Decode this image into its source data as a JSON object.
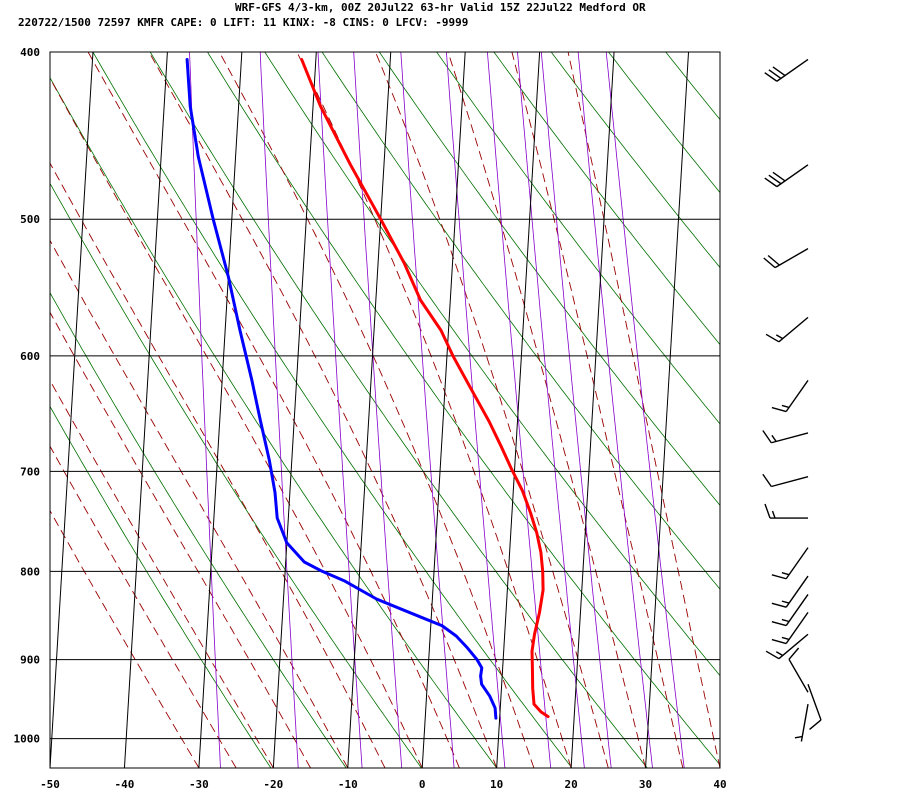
{
  "header": {
    "line1": "WRF-GFS 4/3-km, 00Z 20Jul22 63-hr Valid 15Z 22Jul22 Medford OR",
    "line2": "220722/1500 72597  KMFR    CAPE:     0 LIFT:    11 KINX:    -8 CINS:     0 LFCV: -9999"
  },
  "chart_data": {
    "type": "line",
    "title": "",
    "xlabel": "",
    "ylabel": "",
    "xlim": [
      -50,
      40
    ],
    "ylim_pressure": [
      1040,
      400
    ],
    "x_ticks": [
      -50,
      -40,
      -30,
      -20,
      -10,
      0,
      10,
      20,
      30,
      40
    ],
    "p_ticks": [
      400,
      500,
      600,
      700,
      800,
      900,
      1000
    ],
    "grid": true,
    "series": [
      {
        "name": "",
        "color": "#ff0000",
        "points": [
          [
            -21.9,
            404
          ],
          [
            -19,
            430
          ],
          [
            -14.5,
            465
          ],
          [
            -10,
            500
          ],
          [
            -6.5,
            530
          ],
          [
            -4,
            557
          ],
          [
            -1,
            580
          ],
          [
            0.8,
            600
          ],
          [
            3.5,
            627
          ],
          [
            6.2,
            655
          ],
          [
            8,
            677
          ],
          [
            9.6,
            698
          ],
          [
            11.2,
            718
          ],
          [
            12.5,
            740
          ],
          [
            13.5,
            760
          ],
          [
            14.2,
            780
          ],
          [
            14.6,
            800
          ],
          [
            14.8,
            820
          ],
          [
            14.5,
            845
          ],
          [
            14,
            870
          ],
          [
            13.8,
            890
          ],
          [
            14,
            910
          ],
          [
            14.2,
            935
          ],
          [
            14.5,
            955
          ],
          [
            15.5,
            965
          ],
          [
            16.5,
            971
          ]
        ]
      },
      {
        "name": "",
        "color": "#0000ff",
        "points": [
          [
            -37.3,
            404
          ],
          [
            -36.5,
            430
          ],
          [
            -35,
            460
          ],
          [
            -32.5,
            500
          ],
          [
            -30,
            540
          ],
          [
            -28,
            580
          ],
          [
            -26,
            620
          ],
          [
            -24.5,
            655
          ],
          [
            -23,
            690
          ],
          [
            -22,
            720
          ],
          [
            -21.5,
            745
          ],
          [
            -20,
            770
          ],
          [
            -17.5,
            790
          ],
          [
            -15,
            800
          ],
          [
            -12,
            810
          ],
          [
            -7.5,
            830
          ],
          [
            -1.5,
            850
          ],
          [
            1.5,
            860
          ],
          [
            3.5,
            872
          ],
          [
            5,
            885
          ],
          [
            6.5,
            900
          ],
          [
            7.2,
            910
          ],
          [
            7.1,
            920
          ],
          [
            7.3,
            930
          ],
          [
            8.5,
            945
          ],
          [
            9.3,
            960
          ],
          [
            9.5,
            973
          ]
        ]
      }
    ],
    "background_lines": {
      "dry_adiabat_color": "#007000",
      "moist_adiabat_color": "#990000",
      "mixing_ratio_color": "#8800cc"
    },
    "wind_barbs": [
      {
        "p": 404,
        "dir": 235,
        "speed": 30
      },
      {
        "p": 465,
        "dir": 235,
        "speed": 30
      },
      {
        "p": 520,
        "dir": 240,
        "speed": 20
      },
      {
        "p": 570,
        "dir": 230,
        "speed": 15
      },
      {
        "p": 620,
        "dir": 215,
        "speed": 15
      },
      {
        "p": 665,
        "dir": 255,
        "speed": 15
      },
      {
        "p": 705,
        "dir": 255,
        "speed": 10
      },
      {
        "p": 745,
        "dir": 270,
        "speed": 15
      },
      {
        "p": 775,
        "dir": 215,
        "speed": 15
      },
      {
        "p": 805,
        "dir": 215,
        "speed": 15
      },
      {
        "p": 825,
        "dir": 215,
        "speed": 15
      },
      {
        "p": 845,
        "dir": 215,
        "speed": 15
      },
      {
        "p": 870,
        "dir": 230,
        "speed": 15
      },
      {
        "p": 930,
        "dir": 160,
        "speed": 10
      },
      {
        "p": 940,
        "dir": 330,
        "speed": 10
      },
      {
        "p": 955,
        "dir": 190,
        "speed": 5
      }
    ]
  }
}
